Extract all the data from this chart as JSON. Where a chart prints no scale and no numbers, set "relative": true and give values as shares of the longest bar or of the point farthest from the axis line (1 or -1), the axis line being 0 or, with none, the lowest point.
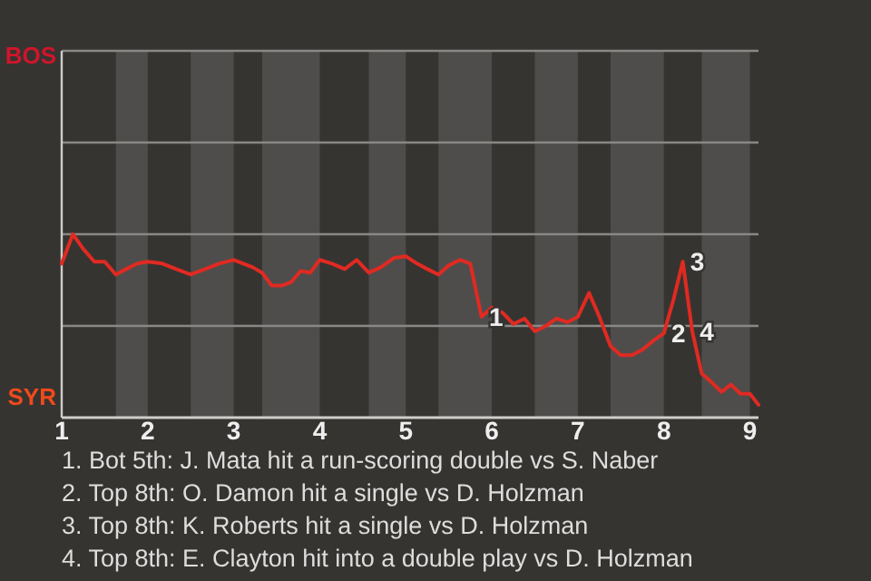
{
  "chart_data": {
    "type": "line",
    "relative": true,
    "xlim": [
      1,
      9.1
    ],
    "xticks": [
      1,
      2,
      3,
      4,
      5,
      6,
      7,
      8,
      9
    ],
    "marker": "none",
    "line_style": "solid",
    "ref_lines": [
      {
        "axis": "y",
        "value": 0.5,
        "color": "#8a8886"
      }
    ],
    "bands": [
      {
        "axis": "x",
        "from": 1.63,
        "to": 2,
        "color": "#4e4d4b"
      },
      {
        "axis": "x",
        "from": 2.5,
        "to": 3,
        "color": "#4e4d4b"
      },
      {
        "axis": "x",
        "from": 3.33,
        "to": 4,
        "color": "#4e4d4b"
      },
      {
        "axis": "x",
        "from": 4.57,
        "to": 5,
        "color": "#4e4d4b"
      },
      {
        "axis": "x",
        "from": 5.38,
        "to": 6,
        "color": "#4e4d4b"
      },
      {
        "axis": "x",
        "from": 6.5,
        "to": 7,
        "color": "#4e4d4b"
      },
      {
        "axis": "x",
        "from": 7.38,
        "to": 8,
        "color": "#4e4d4b"
      },
      {
        "axis": "x",
        "from": 8.44,
        "to": 9,
        "color": "#4e4d4b"
      }
    ],
    "series": [
      {
        "color": "#e02a22",
        "x": [
          1,
          1.13,
          1.25,
          1.38,
          1.5,
          1.63,
          1.75,
          1.88,
          2,
          2.17,
          2.33,
          2.5,
          2.67,
          2.83,
          3,
          3.11,
          3.22,
          3.33,
          3.44,
          3.56,
          3.67,
          3.78,
          3.89,
          4,
          4.14,
          4.29,
          4.43,
          4.57,
          4.71,
          4.86,
          5,
          5.13,
          5.25,
          5.38,
          5.5,
          5.63,
          5.75,
          5.88,
          6,
          6.13,
          6.25,
          6.38,
          6.5,
          6.63,
          6.75,
          6.88,
          7,
          7.13,
          7.25,
          7.38,
          7.5,
          7.63,
          7.75,
          7.88,
          8,
          8.11,
          8.22,
          8.33,
          8.44,
          8.56,
          8.67,
          8.78,
          8.89,
          9,
          9.1
        ],
        "values": [
          0.84,
          1,
          0.92,
          0.85,
          0.85,
          0.78,
          0.81,
          0.84,
          0.85,
          0.84,
          0.81,
          0.78,
          0.81,
          0.84,
          0.86,
          0.84,
          0.82,
          0.79,
          0.72,
          0.72,
          0.74,
          0.8,
          0.79,
          0.86,
          0.84,
          0.81,
          0.86,
          0.79,
          0.82,
          0.87,
          0.88,
          0.84,
          0.81,
          0.78,
          0.83,
          0.86,
          0.84,
          0.55,
          0.6,
          0.57,
          0.51,
          0.54,
          0.47,
          0.5,
          0.54,
          0.52,
          0.55,
          0.68,
          0.55,
          0.39,
          0.34,
          0.34,
          0.37,
          0.42,
          0.46,
          0.64,
          0.85,
          0.47,
          0.24,
          0.19,
          0.14,
          0.18,
          0.13,
          0.13,
          0.07
        ]
      }
    ],
    "annotations": [
      "BOS",
      "SYR",
      {
        "text": "1",
        "x": 5.88,
        "y": 0.55
      },
      {
        "text": "2",
        "x": 8,
        "y": 0.46
      },
      {
        "text": "3",
        "x": 8.22,
        "y": 0.85
      },
      {
        "text": "4",
        "x": 8.33,
        "y": 0.47
      },
      "1. Bot 5th: J. Mata hit a run-scoring double vs S. Naber",
      "2. Top 8th: O. Damon hit a single vs D. Holzman",
      "3. Top 8th: K. Roberts hit a single vs D. Holzman",
      "4. Top 8th: E. Clayton hit into a double play vs D. Holzman"
    ]
  }
}
